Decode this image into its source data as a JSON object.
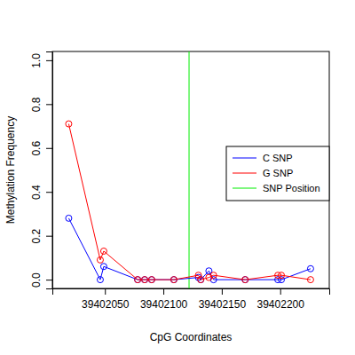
{
  "chart_data": {
    "type": "line",
    "x_label": "CpG Coordinates",
    "y_label": "Methylation Frequency",
    "x": [
      39402019,
      39402046,
      39402049,
      39402078,
      39402084,
      39402090,
      39402109,
      39402130,
      39402132,
      39402139,
      39402143,
      39402170,
      39402198,
      39402201,
      39402226
    ],
    "series": [
      {
        "name": "C SNP",
        "color": "#0000ff",
        "marker": "circle",
        "line_style": "solid",
        "values": [
          0.28,
          0,
          0.06,
          0,
          0,
          0,
          0,
          0.01,
          0,
          0.04,
          0,
          0,
          0,
          0,
          0.05
        ]
      },
      {
        "name": "G SNP",
        "color": "#ff0000",
        "marker": "circle",
        "line_style": "solid",
        "values": [
          0.71,
          0.09,
          0.13,
          0,
          0,
          0,
          0,
          0.02,
          0,
          0.01,
          0.02,
          0,
          0.02,
          0.02,
          0
        ]
      }
    ],
    "snp_position": {
      "name": "SNP Position",
      "color": "#00ee00",
      "x": 39402122
    },
    "xlim": [
      39402005,
      39402242
    ],
    "xticks": [
      39402050,
      39402100,
      39402150,
      39402200
    ],
    "ylim": [
      -0.04,
      1.04
    ],
    "yticks": [
      {
        "value": 0,
        "label": "0.0"
      },
      0.2,
      0.4,
      0.6,
      0.8,
      {
        "value": 1,
        "label": "1.0"
      }
    ],
    "legend": "right",
    "grid": false
  }
}
